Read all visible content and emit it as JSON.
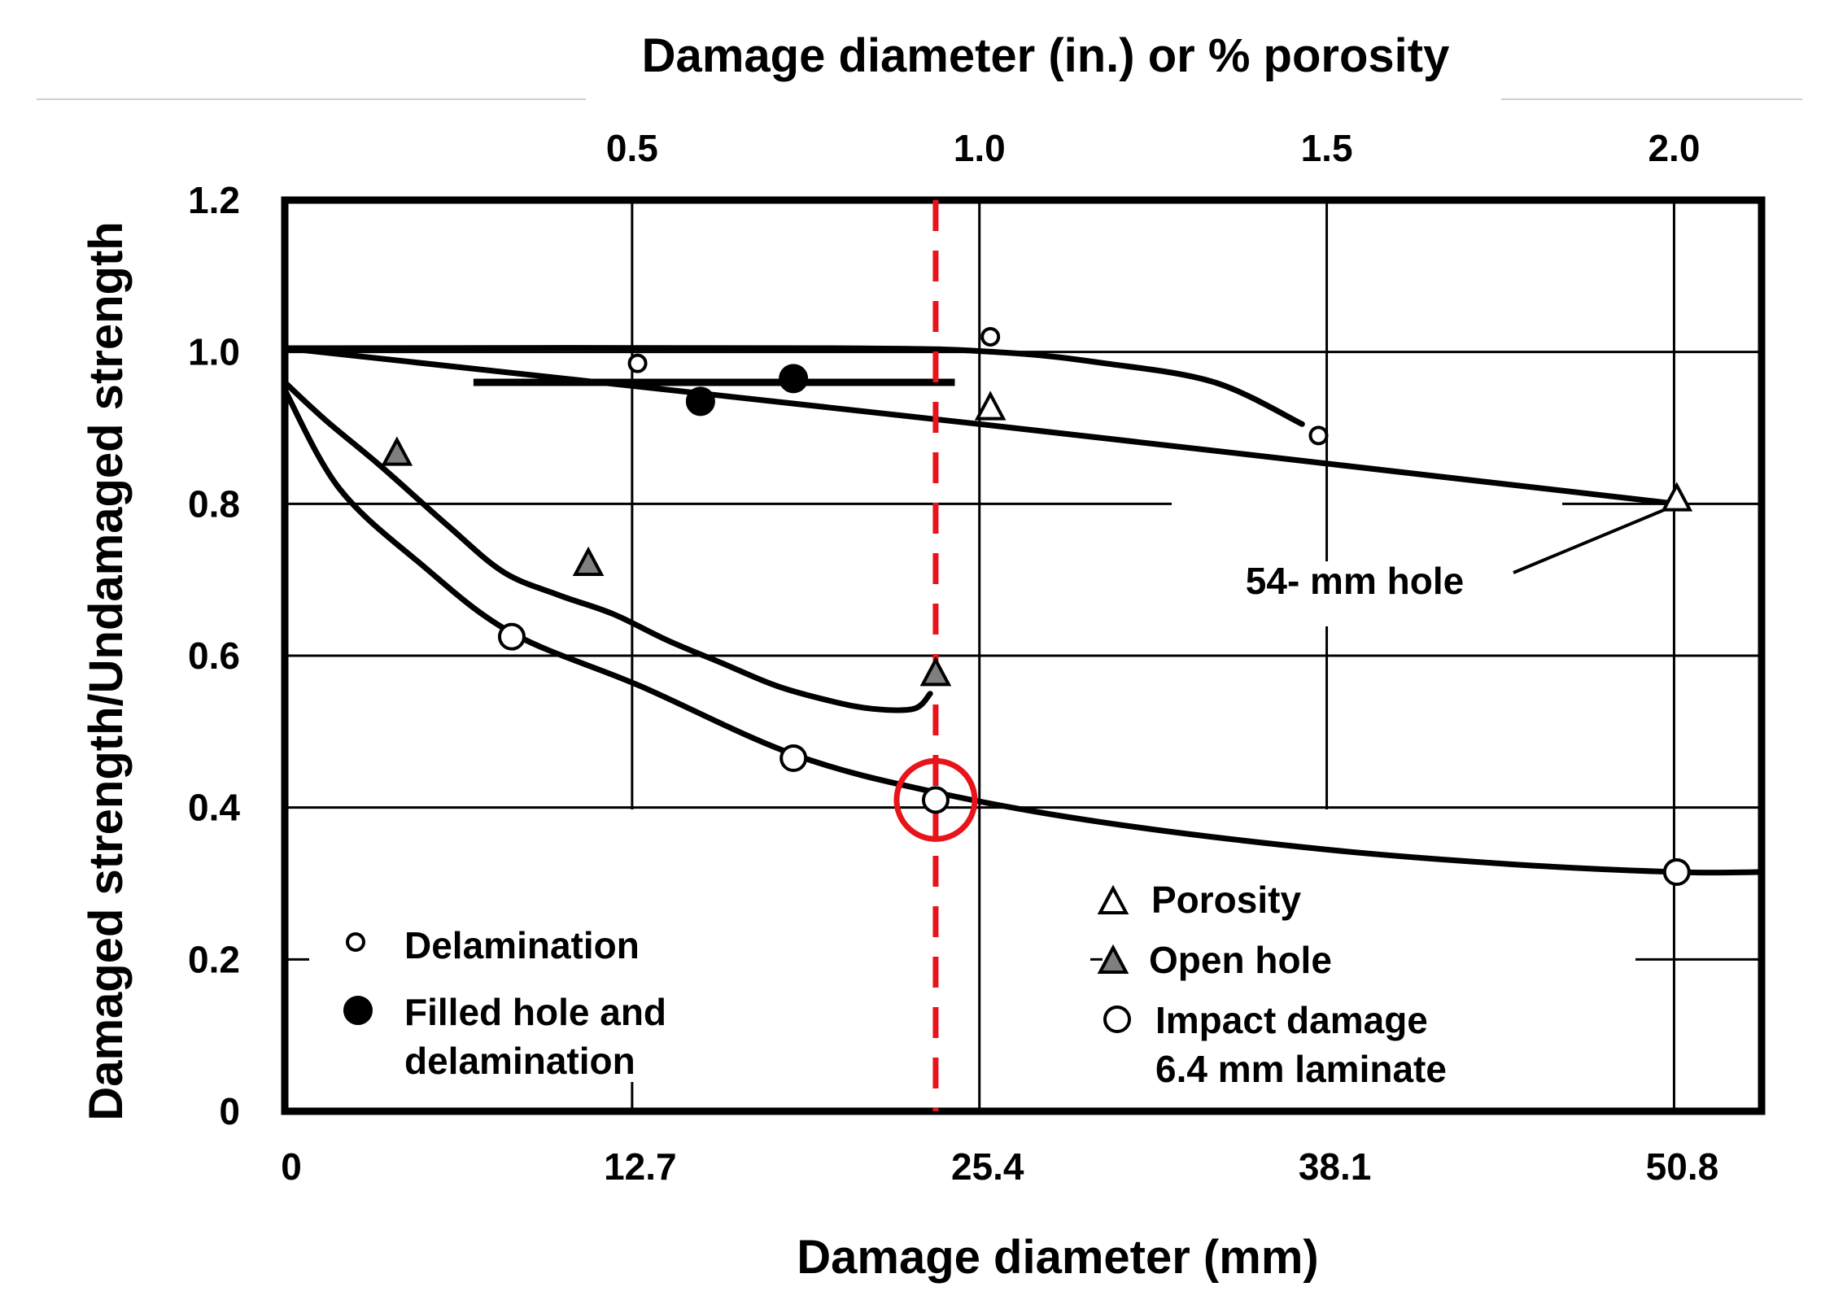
{
  "chart_data": {
    "type": "scatter",
    "title": "",
    "xlabel": "Damage diameter (mm)",
    "x2label": "Damage diameter (in.) or % porosity",
    "ylabel": "Damaged strength/Undamaged strength",
    "xlim": [
      0,
      54
    ],
    "ylim": [
      0,
      1.2
    ],
    "x2lim": [
      0,
      2.126
    ],
    "grid": true,
    "xticks": [
      {
        "value": 0,
        "label": "0"
      },
      {
        "value": 12.7,
        "label": "12.7"
      },
      {
        "value": 25.4,
        "label": "25.4"
      },
      {
        "value": 38.1,
        "label": "38.1"
      },
      {
        "value": 50.8,
        "label": "50.8"
      }
    ],
    "x2ticks": [
      {
        "value": 0.5,
        "label": "0.5"
      },
      {
        "value": 1.0,
        "label": "1.0"
      },
      {
        "value": 1.5,
        "label": "1.5"
      },
      {
        "value": 2.0,
        "label": "2.0"
      }
    ],
    "yticks": [
      {
        "value": 0,
        "label": "0"
      },
      {
        "value": 0.2,
        "label": "0.2"
      },
      {
        "value": 0.4,
        "label": "0.4"
      },
      {
        "value": 0.6,
        "label": "0.6"
      },
      {
        "value": 0.8,
        "label": "0.8"
      },
      {
        "value": 1.0,
        "label": "1.0"
      },
      {
        "value": 1.2,
        "label": "1.2"
      }
    ],
    "series": [
      {
        "name": "Delamination",
        "marker": "small-open-circle",
        "points": [
          [
            12.9,
            0.985
          ],
          [
            25.8,
            1.02
          ],
          [
            37.8,
            0.89
          ]
        ],
        "curve": [
          [
            0,
            1.005
          ],
          [
            20,
            1.005
          ],
          [
            26,
            1.0
          ],
          [
            30,
            0.985
          ],
          [
            34,
            0.96
          ],
          [
            37.2,
            0.905
          ]
        ]
      },
      {
        "name": "Filled hole and delamination",
        "marker": "filled-circle",
        "points": [
          [
            15.2,
            0.935
          ],
          [
            18.6,
            0.965
          ]
        ],
        "segment": [
          [
            6.9,
            0.96
          ],
          [
            24.5,
            0.96
          ]
        ]
      },
      {
        "name": "Porosity",
        "marker": "open-triangle",
        "points": [
          [
            25.8,
            0.925
          ],
          [
            50.9,
            0.805
          ]
        ],
        "curve": [
          [
            0,
            1.005
          ],
          [
            25.4,
            0.905
          ],
          [
            50.9,
            0.8
          ]
        ]
      },
      {
        "name": "Open hole",
        "marker": "gray-triangle",
        "points": [
          [
            4.1,
            0.865
          ],
          [
            11.1,
            0.72
          ],
          [
            23.8,
            0.575
          ]
        ],
        "curve": [
          [
            0,
            0.96
          ],
          [
            1.5,
            0.91
          ],
          [
            3.5,
            0.85
          ],
          [
            6,
            0.77
          ],
          [
            8,
            0.71
          ],
          [
            10,
            0.68
          ],
          [
            12,
            0.655
          ],
          [
            14,
            0.62
          ],
          [
            16,
            0.59
          ],
          [
            18,
            0.56
          ],
          [
            20,
            0.54
          ],
          [
            21.5,
            0.53
          ],
          [
            23,
            0.53
          ],
          [
            23.6,
            0.55
          ]
        ]
      },
      {
        "name": "Impact damage 6.4 mm laminate",
        "marker": "open-circle",
        "points": [
          [
            8.3,
            0.625
          ],
          [
            18.6,
            0.465
          ],
          [
            23.8,
            0.41
          ],
          [
            50.9,
            0.315
          ]
        ],
        "curve": [
          [
            0,
            0.95
          ],
          [
            2,
            0.82
          ],
          [
            5,
            0.72
          ],
          [
            8.3,
            0.63
          ],
          [
            13,
            0.56
          ],
          [
            18.6,
            0.47
          ],
          [
            23.8,
            0.42
          ],
          [
            30,
            0.38
          ],
          [
            38,
            0.345
          ],
          [
            45,
            0.325
          ],
          [
            50.9,
            0.315
          ],
          [
            54,
            0.315
          ]
        ]
      }
    ],
    "annotations": [
      {
        "text": "54- mm hole",
        "points_to": [
          50.9,
          0.8
        ]
      },
      {
        "type": "vertical-dashed-line",
        "color": "#e8141b",
        "x": 23.8
      },
      {
        "type": "circle-highlight",
        "color": "#e8141b",
        "center": [
          23.8,
          0.41
        ]
      }
    ],
    "legend_left": [
      {
        "label": "Delamination"
      },
      {
        "label": [
          "Filled hole and",
          "delamination"
        ]
      }
    ],
    "legend_right": [
      {
        "label": "Porosity"
      },
      {
        "label": "Open hole"
      },
      {
        "label": [
          "Impact damage",
          "6.4 mm laminate"
        ]
      }
    ]
  }
}
